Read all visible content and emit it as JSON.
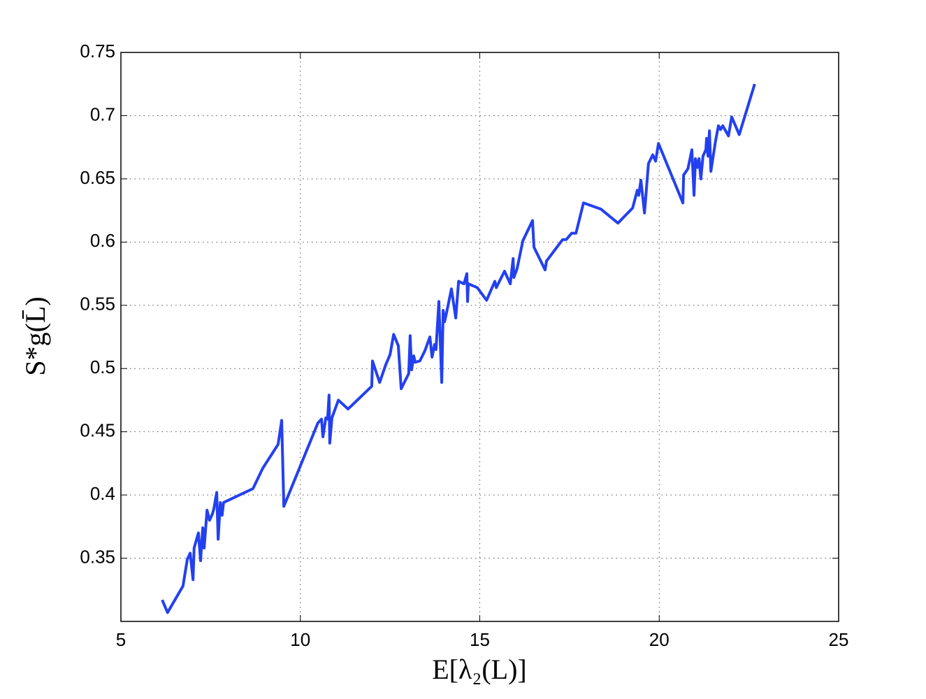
{
  "chart_data": {
    "type": "line",
    "xlabel": "E[λ₂(L)]",
    "ylabel": "S*g(L̄)",
    "color": "#2340f0",
    "grid": true,
    "xlim": [
      5,
      25
    ],
    "xticks": [
      5,
      10,
      15,
      20,
      25
    ],
    "ylim": [
      0.3,
      0.75
    ],
    "yticks": [
      0.35,
      0.4,
      0.45,
      0.5,
      0.55,
      0.6,
      0.65,
      0.7,
      0.75
    ],
    "x": [
      6.15,
      6.3,
      6.73,
      6.85,
      6.93,
      7.01,
      7.04,
      7.16,
      7.22,
      7.28,
      7.32,
      7.4,
      7.47,
      7.55,
      7.59,
      7.67,
      7.71,
      7.77,
      7.82,
      7.86,
      8.68,
      8.95,
      9.38,
      9.48,
      9.54,
      10.49,
      10.59,
      10.63,
      10.71,
      10.76,
      10.8,
      10.82,
      10.88,
      11.06,
      11.33,
      11.99,
      12.01,
      12.21,
      12.38,
      12.5,
      12.6,
      12.73,
      12.81,
      13.02,
      13.06,
      13.1,
      13.16,
      13.2,
      13.33,
      13.47,
      13.61,
      13.67,
      13.74,
      13.78,
      13.86,
      13.94,
      13.98,
      14.02,
      14.11,
      14.21,
      14.33,
      14.41,
      14.56,
      14.64,
      14.66,
      14.68,
      14.93,
      15.19,
      15.42,
      15.46,
      15.69,
      15.85,
      15.93,
      15.95,
      16.04,
      16.2,
      16.47,
      16.51,
      16.82,
      16.86,
      17.31,
      17.41,
      17.56,
      17.68,
      17.89,
      18.38,
      18.85,
      19.26,
      19.39,
      19.43,
      19.49,
      19.59,
      19.7,
      19.82,
      19.9,
      19.98,
      20.66,
      20.68,
      20.8,
      20.91,
      20.97,
      21.01,
      21.07,
      21.11,
      21.16,
      21.22,
      21.3,
      21.32,
      21.36,
      21.4,
      21.44,
      21.57,
      21.65,
      21.71,
      21.77,
      21.93,
      22.02,
      22.23,
      22.66
    ],
    "values": [
      0.317,
      0.307,
      0.328,
      0.349,
      0.354,
      0.333,
      0.358,
      0.37,
      0.348,
      0.374,
      0.358,
      0.388,
      0.38,
      0.385,
      0.389,
      0.402,
      0.365,
      0.394,
      0.384,
      0.394,
      0.405,
      0.421,
      0.44,
      0.459,
      0.391,
      0.457,
      0.46,
      0.446,
      0.461,
      0.46,
      0.479,
      0.441,
      0.461,
      0.475,
      0.468,
      0.486,
      0.506,
      0.489,
      0.503,
      0.511,
      0.527,
      0.518,
      0.484,
      0.496,
      0.526,
      0.499,
      0.51,
      0.505,
      0.506,
      0.514,
      0.525,
      0.509,
      0.519,
      0.515,
      0.553,
      0.489,
      0.546,
      0.537,
      0.549,
      0.563,
      0.54,
      0.569,
      0.567,
      0.575,
      0.553,
      0.567,
      0.564,
      0.554,
      0.569,
      0.564,
      0.577,
      0.567,
      0.587,
      0.572,
      0.579,
      0.601,
      0.617,
      0.596,
      0.578,
      0.585,
      0.602,
      0.602,
      0.607,
      0.607,
      0.631,
      0.626,
      0.615,
      0.627,
      0.641,
      0.637,
      0.649,
      0.623,
      0.662,
      0.669,
      0.664,
      0.678,
      0.631,
      0.653,
      0.658,
      0.673,
      0.637,
      0.666,
      0.659,
      0.666,
      0.65,
      0.668,
      0.673,
      0.682,
      0.668,
      0.688,
      0.656,
      0.68,
      0.692,
      0.689,
      0.692,
      0.684,
      0.699,
      0.685,
      0.725
    ]
  }
}
